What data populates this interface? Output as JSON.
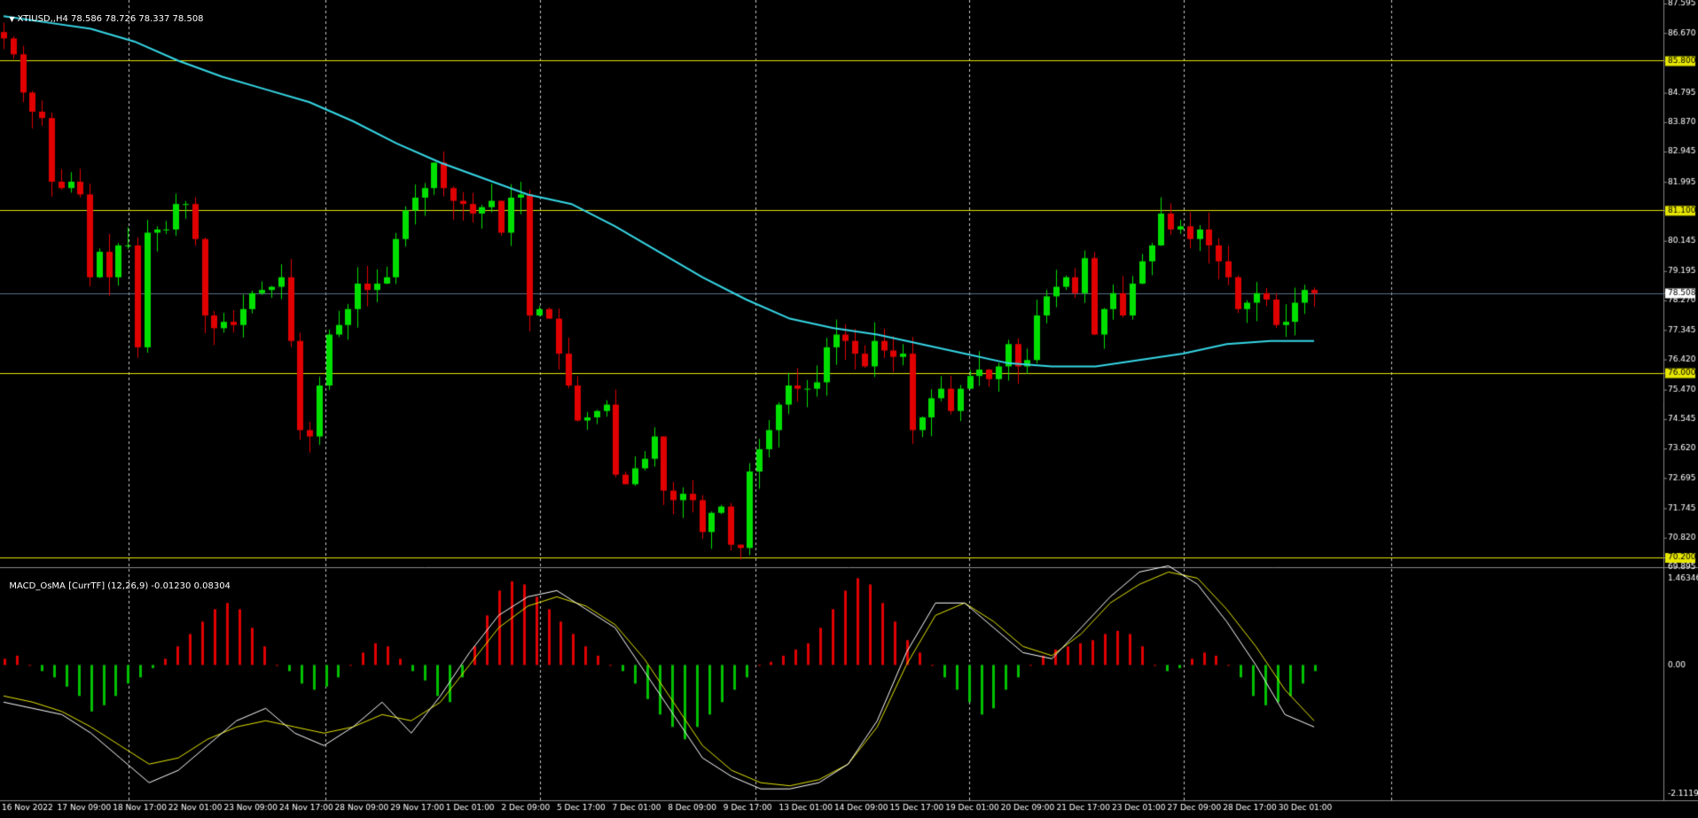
{
  "colors": {
    "background": "#000000",
    "grid": "#c8c8c8",
    "bull": "#00e000",
    "bear": "#e00000",
    "ma": "#36d7e6",
    "hline": "#e6e600",
    "current_line": "#5a6f8a",
    "macd_main": "#ffffff",
    "macd_signal": "#e6e600",
    "osma_pos": "#e00000",
    "osma_neg": "#00c000",
    "axis_text": "#ffffff"
  },
  "header": {
    "symbol_label": "XTIUSD,,H4",
    "ohlc": "78.586 78.726 78.337 78.508"
  },
  "indicator_header": {
    "label": "MACD_OsMA [CurrTF] (12,26,9) -0.01230 0.08304"
  },
  "chart_data": [
    {
      "type": "candlestick",
      "symbol": "XTIUSD",
      "timeframe": "H4",
      "ylim": [
        69.895,
        87.595
      ],
      "price_axis_ticks": [
        "87.595",
        "86.670",
        "85.800",
        "84.795",
        "83.870",
        "82.945",
        "81.995",
        "81.100",
        "80.145",
        "79.195",
        "78.508",
        "78.270",
        "77.345",
        "76.420",
        "76.000",
        "75.470",
        "74.545",
        "73.620",
        "72.695",
        "71.745",
        "70.820",
        "70.200",
        "69.895"
      ],
      "horizontal_levels": [
        85.8,
        81.1,
        76.0,
        70.2
      ],
      "current_price": 78.508,
      "time_labels": [
        "16 Nov 2022",
        "17 Nov 09:00",
        "18 Nov 17:00",
        "22 Nov 01:00",
        "23 Nov 09:00",
        "24 Nov 17:00",
        "28 Nov 09:00",
        "29 Nov 17:00",
        "1 Dec 01:00",
        "2 Dec 09:00",
        "5 Dec 17:00",
        "7 Dec 01:00",
        "8 Dec 09:00",
        "9 Dec 17:00",
        "13 Dec 01:00",
        "14 Dec 09:00",
        "15 Dec 17:00",
        "19 Dec 01:00",
        "20 Dec 09:00",
        "21 Dec 17:00",
        "23 Dec 01:00",
        "27 Dec 09:00",
        "28 Dec 17:00",
        "30 Dec 01:00"
      ],
      "close_path": [
        86.5,
        86.0,
        84.8,
        84.2,
        84.0,
        82.0,
        81.8,
        82.0,
        81.6,
        79.0,
        79.8,
        79.0,
        80.0,
        80.0,
        76.8,
        80.4,
        80.5,
        80.5,
        81.3,
        81.3,
        80.2,
        77.8,
        77.4,
        77.6,
        77.5,
        78.0,
        78.5,
        78.6,
        78.7,
        79.0,
        77.0,
        74.2,
        74.0,
        75.6,
        77.2,
        77.5,
        78.0,
        78.8,
        78.6,
        78.8,
        79.0,
        80.2,
        81.1,
        81.5,
        81.8,
        82.6,
        81.8,
        81.4,
        81.3,
        81.0,
        81.2,
        81.4,
        80.4,
        81.5,
        81.6,
        77.8,
        78.0,
        77.7,
        76.6,
        75.6,
        74.5,
        74.6,
        74.8,
        75.0,
        72.8,
        72.5,
        73.0,
        73.3,
        74.0,
        72.3,
        72.0,
        72.2,
        72.0,
        71.0,
        71.6,
        71.8,
        70.6,
        70.5,
        72.9,
        73.6,
        74.2,
        75.0,
        75.6,
        75.5,
        75.5,
        75.7,
        76.8,
        77.2,
        77.0,
        76.6,
        76.2,
        77.0,
        76.7,
        76.5,
        76.6,
        74.2,
        74.6,
        75.2,
        75.5,
        74.8,
        75.5,
        75.9,
        76.1,
        75.8,
        76.2,
        76.9,
        76.2,
        76.4,
        77.8,
        78.4,
        78.7,
        79.0,
        78.5,
        79.6,
        77.2,
        78.0,
        78.5,
        77.8,
        78.8,
        79.5,
        80.0,
        81.0,
        80.5,
        80.6,
        80.2,
        80.5,
        80.0,
        79.5,
        79.0,
        78.0,
        78.2,
        78.5,
        78.3,
        77.5,
        77.6,
        78.2,
        78.6,
        78.5
      ],
      "moving_average": [
        87.2,
        87.0,
        86.8,
        86.4,
        85.8,
        85.3,
        84.9,
        84.5,
        83.9,
        83.2,
        82.6,
        82.1,
        81.6,
        81.3,
        80.6,
        79.8,
        79.0,
        78.3,
        77.7,
        77.4,
        77.2,
        76.9,
        76.6,
        76.3,
        76.2,
        76.2,
        76.4,
        76.6,
        76.9,
        77.0,
        77.0
      ],
      "volume": "n/a"
    },
    {
      "type": "bar",
      "name": "MACD_OsMA [CurrTF] (12,26,9)",
      "ylim": [
        -2.11198,
        1.46346
      ],
      "axis_ticks": [
        "1.46346",
        "0.00",
        "-2.11198"
      ],
      "osma_values": [
        0.1,
        0.15,
        0.0,
        -0.1,
        -0.2,
        -0.35,
        -0.5,
        -0.75,
        -0.65,
        -0.5,
        -0.3,
        -0.2,
        -0.05,
        0.1,
        0.3,
        0.5,
        0.7,
        0.9,
        1.0,
        0.9,
        0.6,
        0.3,
        0.0,
        -0.1,
        -0.3,
        -0.4,
        -0.35,
        -0.2,
        0.0,
        0.2,
        0.35,
        0.3,
        0.1,
        -0.1,
        -0.25,
        -0.5,
        -0.6,
        -0.2,
        0.3,
        0.8,
        1.2,
        1.35,
        1.3,
        1.1,
        0.9,
        0.7,
        0.5,
        0.3,
        0.15,
        0.0,
        -0.1,
        -0.3,
        -0.55,
        -0.8,
        -1.0,
        -1.2,
        -1.0,
        -0.8,
        -0.6,
        -0.4,
        -0.2,
        0.0,
        0.05,
        0.15,
        0.25,
        0.35,
        0.6,
        0.9,
        1.2,
        1.4,
        1.3,
        1.0,
        0.7,
        0.4,
        0.2,
        0.0,
        -0.2,
        -0.4,
        -0.6,
        -0.8,
        -0.7,
        -0.4,
        -0.2,
        0.0,
        0.15,
        0.25,
        0.3,
        0.35,
        0.4,
        0.5,
        0.55,
        0.5,
        0.3,
        0.0,
        -0.1,
        -0.05,
        0.1,
        0.2,
        0.15,
        0.0,
        -0.2,
        -0.5,
        -0.65,
        -0.6,
        -0.5,
        -0.3,
        -0.1
      ],
      "macd_main": [
        -0.6,
        -0.7,
        -0.8,
        -1.1,
        -1.5,
        -1.9,
        -1.7,
        -1.3,
        -0.9,
        -0.7,
        -1.1,
        -1.3,
        -1.0,
        -0.6,
        -1.1,
        -0.5,
        0.2,
        0.8,
        1.1,
        1.2,
        0.9,
        0.6,
        -0.1,
        -0.8,
        -1.5,
        -1.8,
        -2.0,
        -2.0,
        -1.9,
        -1.6,
        -0.9,
        0.2,
        1.0,
        1.0,
        0.6,
        0.2,
        0.1,
        0.6,
        1.1,
        1.5,
        1.6,
        1.3,
        0.7,
        0.0,
        -0.8,
        -1.0
      ],
      "macd_signal": [
        -0.5,
        -0.6,
        -0.75,
        -1.0,
        -1.3,
        -1.6,
        -1.5,
        -1.2,
        -1.0,
        -0.9,
        -1.0,
        -1.1,
        -1.0,
        -0.8,
        -0.9,
        -0.6,
        0.0,
        0.6,
        0.95,
        1.1,
        0.95,
        0.65,
        0.1,
        -0.6,
        -1.3,
        -1.7,
        -1.9,
        -1.95,
        -1.85,
        -1.6,
        -1.0,
        0.0,
        0.8,
        1.0,
        0.7,
        0.3,
        0.15,
        0.5,
        1.0,
        1.3,
        1.5,
        1.4,
        0.9,
        0.3,
        -0.4,
        -0.9
      ]
    }
  ]
}
